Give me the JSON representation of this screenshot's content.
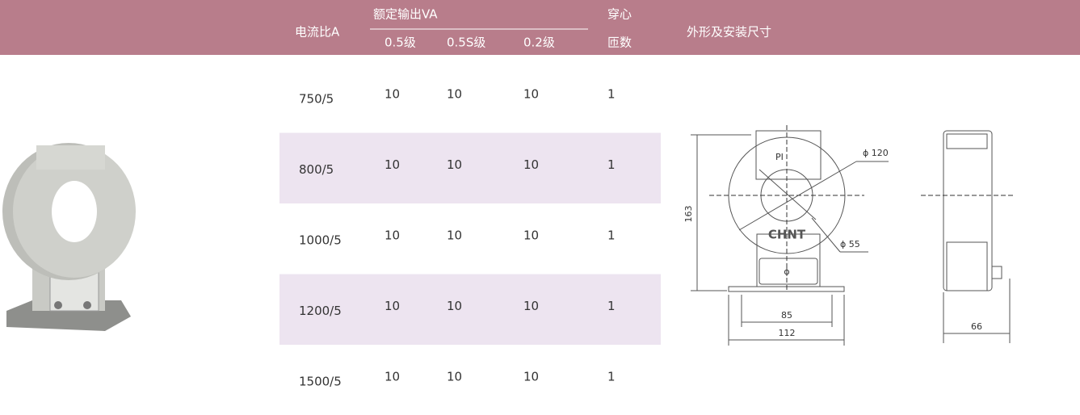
{
  "header": {
    "current_ratio": "电流比A",
    "rated_output": "额定输出VA",
    "classes": [
      "0.5级",
      "0.5S级",
      "0.2级"
    ],
    "turns": [
      "穿心",
      "匝数"
    ],
    "dimensions": "外形及安装尺寸"
  },
  "table": {
    "rows": [
      [
        "750/5",
        "10",
        "10",
        "10",
        "1"
      ],
      [
        "800/5",
        "10",
        "10",
        "10",
        "1"
      ],
      [
        "1000/5",
        "10",
        "10",
        "10",
        "1"
      ],
      [
        "1200/5",
        "10",
        "10",
        "10",
        "1"
      ],
      [
        "1500/5",
        "10",
        "10",
        "10",
        "1"
      ]
    ]
  },
  "drawing": {
    "labels": {
      "pi": "PI",
      "d120": "ϕ 120",
      "h163": "163",
      "brand": "CHNT",
      "d55": "ϕ 55",
      "terminal": "ϕ",
      "w85": "85",
      "w112": "112",
      "d66": "66"
    }
  }
}
